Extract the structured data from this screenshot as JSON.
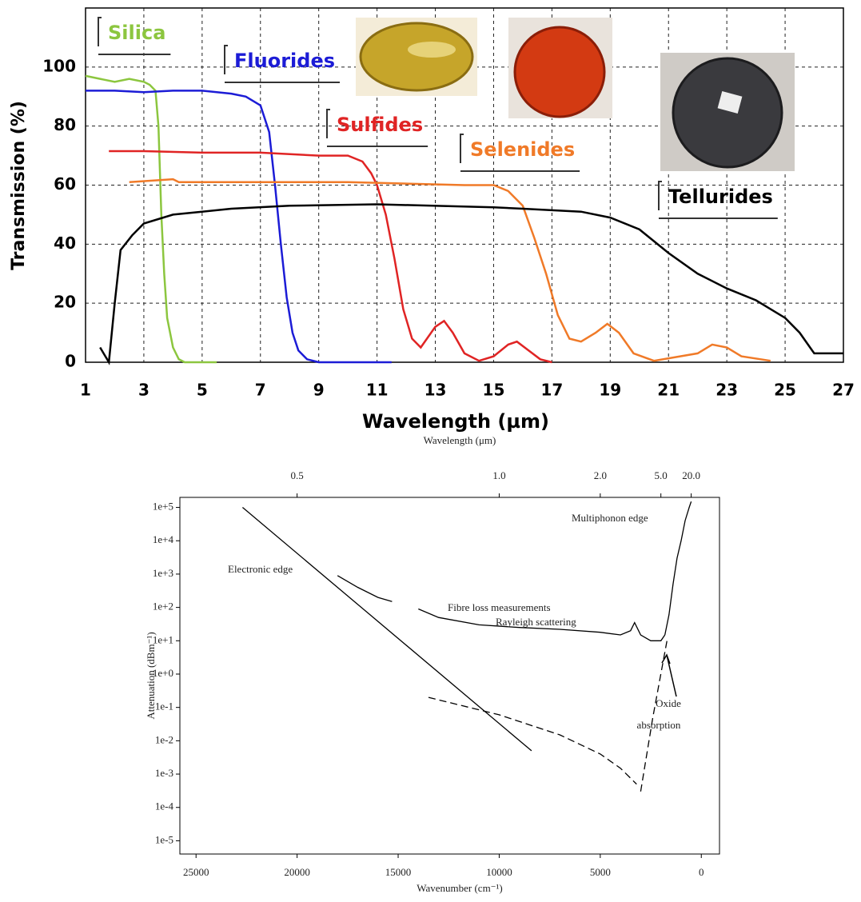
{
  "chart_data": [
    {
      "type": "line",
      "xlabel": "Wavelength (µm)",
      "ylabel": "Transmission (%)",
      "xlim": [
        1,
        27
      ],
      "ylim": [
        0,
        120
      ],
      "xticks": [
        1,
        3,
        5,
        7,
        9,
        11,
        13,
        15,
        17,
        19,
        21,
        23,
        25,
        27
      ],
      "yticks": [
        0,
        20,
        40,
        60,
        80,
        100
      ],
      "grid": true,
      "series": [
        {
          "name": "Silica",
          "color": "#8cc63f",
          "x": [
            1,
            1.5,
            2,
            2.5,
            3,
            3.2,
            3.4,
            3.5,
            3.6,
            3.7,
            3.8,
            4,
            4.2,
            4.4,
            5.5
          ],
          "values": [
            97,
            96,
            95,
            96,
            95,
            94,
            92,
            80,
            50,
            30,
            15,
            5,
            1,
            0,
            0
          ]
        },
        {
          "name": "Fluorides",
          "color": "#1c1cd6",
          "x": [
            1,
            2,
            3,
            4,
            5,
            6,
            6.5,
            7,
            7.3,
            7.5,
            7.7,
            7.9,
            8.1,
            8.3,
            8.6,
            9,
            10,
            11.5
          ],
          "values": [
            92,
            92,
            91.5,
            92,
            92,
            91,
            90,
            87,
            78,
            60,
            40,
            22,
            10,
            4,
            1,
            0,
            0,
            0
          ]
        },
        {
          "name": "Sulfides",
          "color": "#e02424",
          "x": [
            1.8,
            3,
            5,
            7,
            9,
            10,
            10.5,
            10.8,
            11,
            11.3,
            11.6,
            11.9,
            12.2,
            12.5,
            13,
            13.3,
            13.6,
            14,
            14.5,
            15,
            15.5,
            15.8,
            16.2,
            16.6,
            17
          ],
          "values": [
            71.5,
            71.5,
            71,
            71,
            70,
            70,
            68,
            64,
            60,
            50,
            35,
            18,
            8,
            5,
            12,
            14,
            10,
            3,
            0.5,
            2,
            6,
            7,
            4,
            1,
            0
          ]
        },
        {
          "name": "Selenides",
          "color": "#f07a28",
          "x": [
            2.5,
            4,
            4.2,
            6,
            10,
            14,
            15,
            15.5,
            16,
            16.4,
            16.8,
            17.2,
            17.6,
            18,
            18.5,
            18.9,
            19.3,
            19.8,
            20.5,
            22,
            22.5,
            23,
            23.5,
            24.5
          ],
          "values": [
            61,
            62,
            61,
            61,
            61,
            60,
            60,
            58,
            53,
            42,
            30,
            16,
            8,
            7,
            10,
            13,
            10,
            3,
            0.5,
            3,
            6,
            5,
            2,
            0.5
          ]
        },
        {
          "name": "Tellurides",
          "color": "#000000",
          "x": [
            1.5,
            1.8,
            2,
            2.2,
            2.6,
            3,
            4,
            5,
            6,
            8,
            11,
            15,
            16,
            18,
            19,
            20,
            21,
            22,
            23,
            24,
            25,
            25.5,
            26,
            26.5,
            27
          ],
          "values": [
            5,
            0,
            20,
            38,
            43,
            47,
            50,
            51,
            52,
            53,
            53.5,
            52.5,
            52,
            51,
            49,
            45,
            37,
            30,
            25,
            21,
            15,
            10,
            3,
            3,
            3
          ]
        }
      ]
    },
    {
      "type": "line",
      "xlabel": "Wavenumber (cm⁻¹)",
      "ylabel": "Attenuation (dBm⁻¹)",
      "x2label": "Wavelength (μm)",
      "xlim": [
        25800,
        -900
      ],
      "ylim": [
        4e-06,
        200000
      ],
      "ylog": true,
      "xticks": [
        25000,
        20000,
        15000,
        10000,
        5000,
        0
      ],
      "x2ticks": [
        0.5,
        {
          "value": 1,
          "label": "1.0"
        },
        {
          "value": 2,
          "label": "2.0"
        },
        {
          "value": 5,
          "label": "5.0"
        },
        {
          "value": 20,
          "label": "20.0"
        }
      ],
      "yticks": [
        {
          "value": 1e-05,
          "label": "1e-5"
        },
        {
          "value": 0.0001,
          "label": "1e-4"
        },
        {
          "value": 0.001,
          "label": "1e-3"
        },
        {
          "value": 0.01,
          "label": "1e-2"
        },
        {
          "value": 0.1,
          "label": "1e-1"
        },
        {
          "value": 1,
          "label": "1e+0"
        },
        {
          "value": 10,
          "label": "1e+1"
        },
        {
          "value": 100,
          "label": "1e+2"
        },
        {
          "value": 1000,
          "label": "1e+3"
        },
        {
          "value": 10000,
          "label": "1e+4"
        },
        {
          "value": 100000,
          "label": "1e+5"
        }
      ],
      "series": [
        {
          "name": "Electronic edge",
          "color": "#000000",
          "x": [
            22700,
            8400
          ],
          "values": [
            100000,
            0.005
          ]
        },
        {
          "name": "Fibre loss measurements",
          "color": "#000000",
          "x": [
            18000,
            17000,
            16000,
            15300,
            14700,
            14000,
            13000,
            11000,
            9000,
            7000,
            5000,
            4000,
            3500,
            3300,
            3000,
            2500,
            2000,
            1800
          ],
          "values": [
            900,
            400,
            200,
            150,
            null,
            90,
            50,
            30,
            25,
            22,
            18,
            15,
            20,
            35,
            15,
            10,
            10,
            15
          ]
        },
        {
          "name": "Multiphonon edge",
          "color": "#000000",
          "x": [
            1800,
            1600,
            1400,
            1200,
            1000,
            800,
            600,
            500
          ],
          "values": [
            15,
            60,
            500,
            3000,
            10000,
            40000,
            100000,
            150000
          ]
        },
        {
          "name": "Rayleigh scattering",
          "color": "#000000",
          "dashed": true,
          "x": [
            13500,
            10000,
            7000,
            5000,
            4000,
            3200
          ],
          "values": [
            0.2,
            0.06,
            0.015,
            0.004,
            0.0015,
            0.0005
          ]
        },
        {
          "name": "Oxide absorption",
          "color": "#000000",
          "dashed": true,
          "x": [
            3000,
            2400,
            1700
          ],
          "values": [
            0.0003,
            0.05,
            10
          ]
        }
      ]
    }
  ]
}
